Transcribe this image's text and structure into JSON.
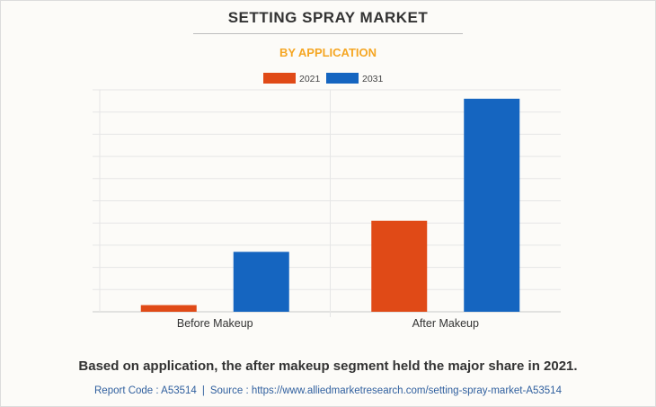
{
  "header": {
    "title": "SETTING SPRAY MARKET",
    "subtitle": "BY APPLICATION"
  },
  "chart_data": {
    "type": "bar",
    "categories": [
      "Before Makeup",
      "After Makeup"
    ],
    "series": [
      {
        "name": "2021",
        "color": "#e04a17",
        "values": [
          0.3,
          4.1
        ]
      },
      {
        "name": "2031",
        "color": "#1565c0",
        "values": [
          2.7,
          9.6
        ]
      }
    ],
    "ylim": [
      0,
      10
    ],
    "grid": true,
    "legend": "top-center",
    "y_tick_labels": false
  },
  "footer": {
    "statement": "Based on application, the after makeup segment held the major share in 2021.",
    "report_code": "Report Code : A53514",
    "separator": "|",
    "source": "Source : https://www.alliedmarketresearch.com/setting-spray-market-A53514"
  }
}
